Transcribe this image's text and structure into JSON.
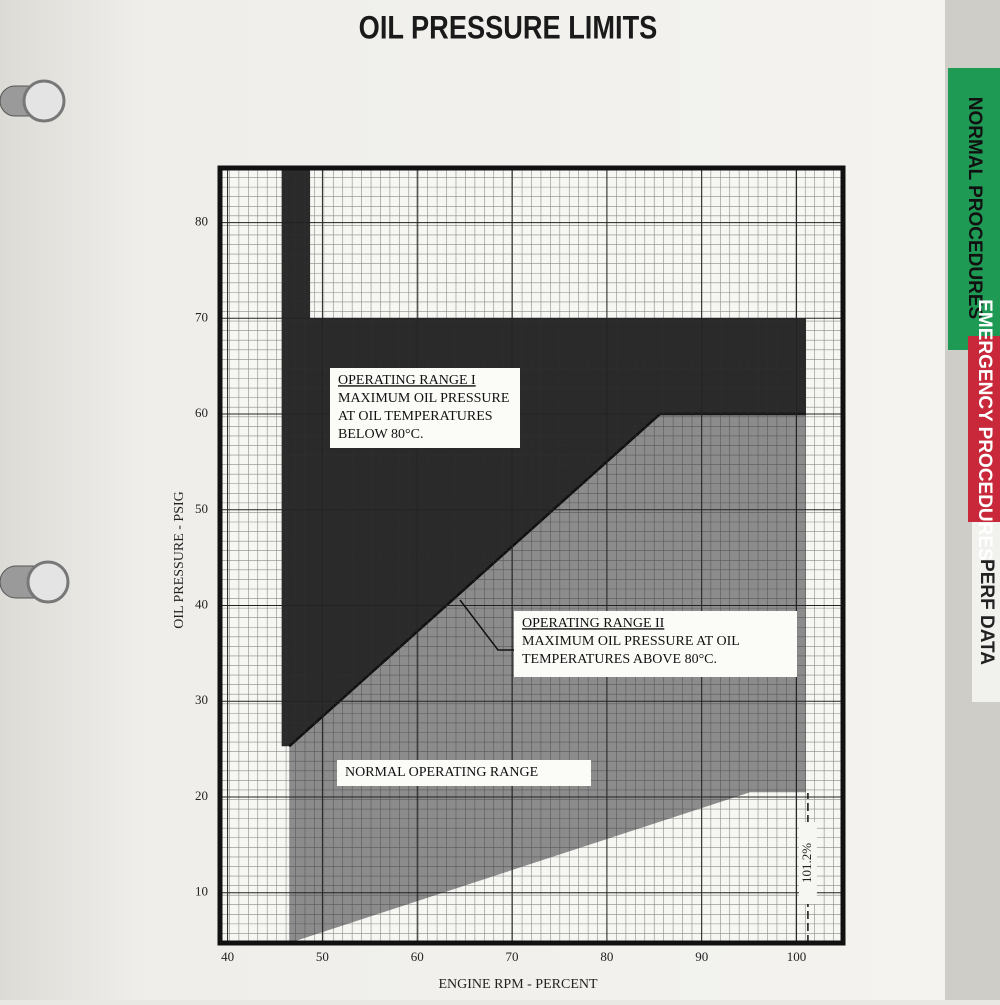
{
  "chart_data": {
    "type": "region",
    "title": "OIL PRESSURE LIMITS",
    "x_label": "ENGINE RPM - PERCENT",
    "y_label": "OIL PRESSURE - PSIG",
    "xlim": [
      39.2,
      104.9
    ],
    "ylim": [
      4.75,
      85.7
    ],
    "xticks": [
      40,
      50,
      60,
      70,
      80,
      90,
      100
    ],
    "yticks": [
      10,
      20,
      30,
      40,
      50,
      60,
      70,
      80
    ],
    "grid": true,
    "series": [
      {
        "name": "OPERATING RANGE I",
        "description": [
          "MAXIMUM OIL PRESSURE",
          "AT OIL TEMPERATURES",
          "BELOW 80°C."
        ],
        "kind": "area",
        "color": "#2a2a2a",
        "x": [
          45.7,
          48.7,
          48.7,
          101,
          101,
          85.6,
          46.5,
          45.7
        ],
        "y": [
          85.7,
          85.7,
          70,
          70,
          60,
          60,
          25.3,
          25.3
        ]
      },
      {
        "name": "NORMAL OPERATING RANGE",
        "kind": "area",
        "color": "#8c8c8c",
        "x": [
          46.5,
          85.6,
          101,
          101,
          95.1,
          46.5
        ],
        "y": [
          25.3,
          60,
          60,
          20.5,
          20.5,
          4.75
        ]
      },
      {
        "name": "OPERATING RANGE II",
        "description": [
          "MAXIMUM OIL PRESSURE AT OIL",
          "TEMPERATURES ABOVE 80°C."
        ],
        "kind": "line",
        "color": "#111111",
        "x": [
          46.5,
          85.6,
          101
        ],
        "y": [
          25.3,
          60,
          60
        ]
      }
    ],
    "reference_line": {
      "value": 101.2,
      "label": "101.2%"
    }
  },
  "tabs": [
    "NORMAL PROCEDURES",
    "EMERGENCY PROCEDURES",
    "PERF DATA"
  ]
}
